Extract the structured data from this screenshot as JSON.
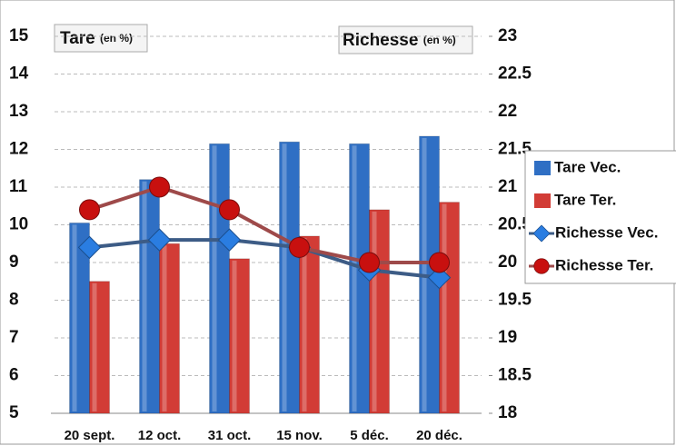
{
  "chart_data": {
    "type": "bar",
    "ylabel": [
      "Tare",
      "(en %)"
    ],
    "y2label": [
      "Richesse",
      "(en %)"
    ],
    "categories": [
      "20 sept.",
      "12 oct.",
      "31 oct.",
      "15 nov.",
      "5 déc.",
      "20 déc."
    ],
    "series": [
      {
        "name": "Tare Vec.",
        "type": "bar",
        "color": "#2f6fc4",
        "values": [
          10.05,
          11.2,
          12.15,
          12.2,
          12.15,
          12.35
        ]
      },
      {
        "name": "Tare Ter.",
        "type": "bar",
        "color": "#d23c36",
        "values": [
          8.5,
          9.5,
          9.1,
          9.7,
          10.4,
          10.6
        ]
      },
      {
        "name": "Richesse Vec.",
        "type": "line",
        "marker": "diamond",
        "axis": "y2",
        "color": "#2a7de1",
        "values": [
          20.2,
          20.3,
          20.3,
          20.2,
          19.9,
          19.8
        ]
      },
      {
        "name": "Richesse Ter.",
        "type": "line",
        "marker": "circle",
        "axis": "y2",
        "color": "#c8100f",
        "values": [
          20.7,
          21.0,
          20.7,
          20.2,
          20.0,
          20.0
        ]
      }
    ],
    "ylim": [
      5,
      15
    ],
    "yticks": [
      5,
      6,
      7,
      8,
      9,
      10,
      11,
      12,
      13,
      14,
      15
    ],
    "y2lim": [
      18,
      23
    ],
    "y2ticks": [
      18,
      18.5,
      19,
      19.5,
      20,
      20.5,
      21,
      21.5,
      22,
      22.5,
      23
    ],
    "grid": true
  }
}
